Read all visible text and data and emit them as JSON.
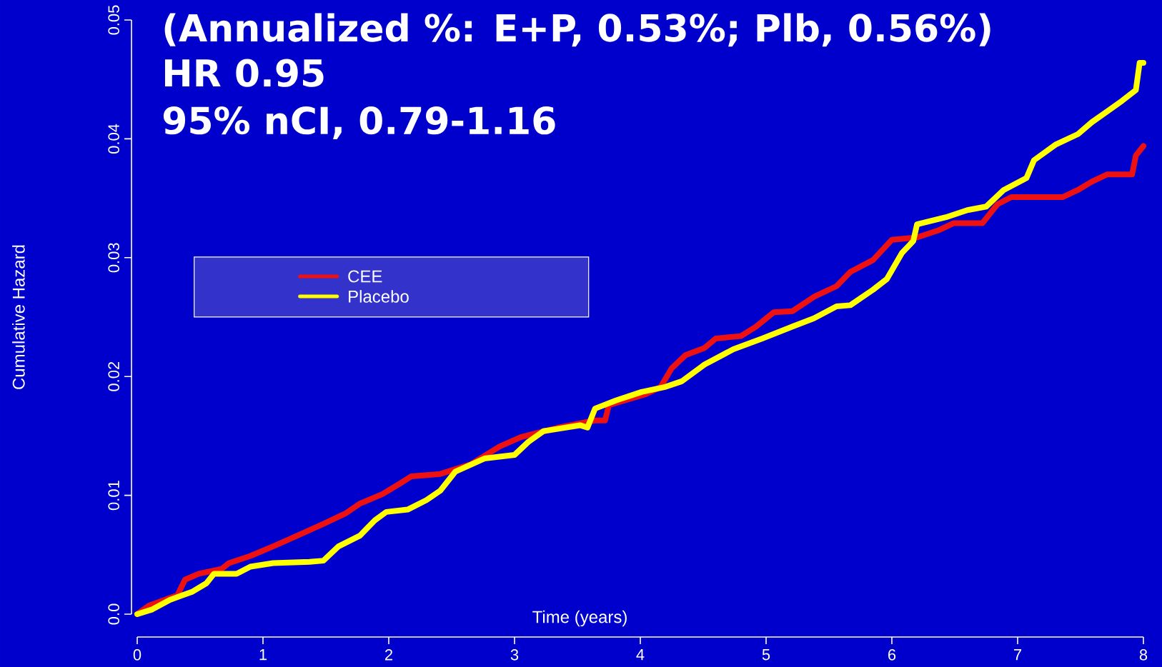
{
  "chart_data": {
    "type": "line",
    "title": "(Annualized %: E+P, 0.53%; Plb, 0.56%)",
    "annotations": [
      "HR 0.95",
      "95% nCI, 0.79-1.16"
    ],
    "xlabel": "Time (years)",
    "ylabel": "Cumulative Hazard",
    "xlim": [
      0,
      8
    ],
    "ylim": [
      0,
      0.05
    ],
    "xticks": [
      0,
      1,
      2,
      3,
      4,
      5,
      6,
      7,
      8
    ],
    "yticks": [
      {
        "value": 0,
        "label": "0.0"
      },
      0.01,
      0.02,
      0.03,
      0.04,
      0.05
    ],
    "legend": "left",
    "series": [
      {
        "name": "CEE",
        "color": "#ee1111",
        "x": [
          0,
          0.09,
          0.32,
          0.38,
          0.49,
          0.67,
          0.73,
          0.9,
          1.08,
          1.25,
          1.48,
          1.66,
          1.77,
          1.95,
          2.09,
          2.18,
          2.41,
          2.65,
          2.88,
          3.05,
          3.35,
          3.64,
          3.72,
          3.75,
          4.04,
          4.16,
          4.25,
          4.36,
          4.51,
          4.6,
          4.8,
          4.92,
          5.06,
          5.21,
          5.38,
          5.56,
          5.67,
          5.85,
          6.0,
          6.2,
          6.37,
          6.49,
          6.72,
          6.84,
          6.95,
          7.36,
          7.48,
          7.59,
          7.71,
          7.91,
          7.94,
          8.0
        ],
        "values": [
          0,
          0.0007,
          0.0016,
          0.0029,
          0.0034,
          0.0038,
          0.0043,
          0.0049,
          0.0057,
          0.0065,
          0.0076,
          0.0085,
          0.0093,
          0.0101,
          0.011,
          0.0116,
          0.0118,
          0.0126,
          0.0141,
          0.0149,
          0.0157,
          0.0163,
          0.0163,
          0.0176,
          0.0185,
          0.0191,
          0.0207,
          0.0218,
          0.0224,
          0.0232,
          0.0234,
          0.0242,
          0.0254,
          0.0255,
          0.0267,
          0.0276,
          0.0288,
          0.0298,
          0.0315,
          0.0317,
          0.0323,
          0.0329,
          0.0329,
          0.0345,
          0.0351,
          0.0351,
          0.0357,
          0.0364,
          0.037,
          0.037,
          0.0386,
          0.0394
        ]
      },
      {
        "name": "Placebo",
        "color": "#ffff00",
        "x": [
          0,
          0.12,
          0.26,
          0.44,
          0.55,
          0.61,
          0.79,
          0.9,
          1.08,
          1.37,
          1.48,
          1.6,
          1.77,
          1.89,
          1.98,
          2.15,
          2.3,
          2.41,
          2.53,
          2.76,
          3.0,
          3.11,
          3.23,
          3.52,
          3.58,
          3.64,
          3.81,
          4.01,
          4.19,
          4.33,
          4.51,
          4.74,
          4.97,
          5.21,
          5.38,
          5.56,
          5.67,
          5.85,
          5.96,
          6.08,
          6.17,
          6.2,
          6.43,
          6.6,
          6.75,
          6.89,
          7.07,
          7.13,
          7.3,
          7.48,
          7.59,
          7.71,
          7.83,
          7.94,
          7.97,
          8.0
        ],
        "values": [
          0,
          0.0004,
          0.0012,
          0.0019,
          0.0026,
          0.0034,
          0.0034,
          0.004,
          0.0043,
          0.0044,
          0.0045,
          0.0057,
          0.0066,
          0.0079,
          0.0086,
          0.0088,
          0.0096,
          0.0104,
          0.012,
          0.0131,
          0.0134,
          0.0145,
          0.0154,
          0.0159,
          0.0157,
          0.0173,
          0.018,
          0.0187,
          0.0191,
          0.0196,
          0.021,
          0.0223,
          0.0232,
          0.0242,
          0.0249,
          0.0259,
          0.026,
          0.0273,
          0.0282,
          0.0304,
          0.0314,
          0.0328,
          0.0334,
          0.034,
          0.0343,
          0.0357,
          0.0367,
          0.0382,
          0.0395,
          0.0404,
          0.0414,
          0.0423,
          0.0432,
          0.0441,
          0.0464,
          0.0464
        ]
      }
    ]
  }
}
